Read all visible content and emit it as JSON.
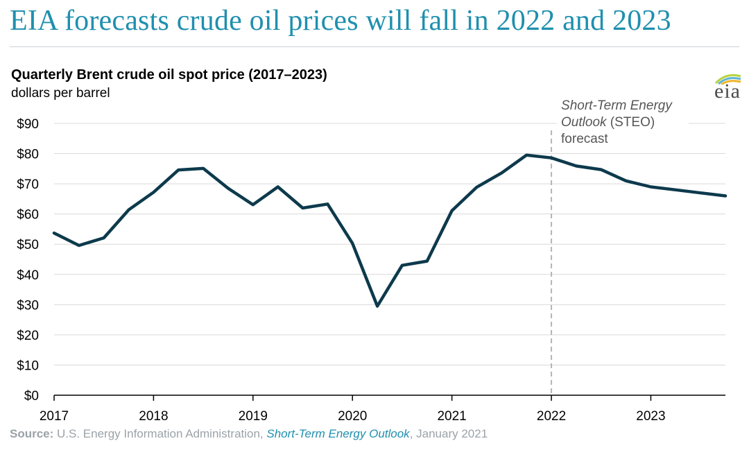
{
  "headline": "EIA forecasts crude oil prices will fall in 2022 and 2023",
  "logo": {
    "text": "eia"
  },
  "source": {
    "label": "Source:",
    "agency": " U.S. Energy Information Administration, ",
    "publication": "Short-Term Energy Outlook",
    "date": ", January 2021"
  },
  "chart_data": {
    "type": "line",
    "title": "Quarterly Brent crude oil spot price (2017–2023)",
    "subtitle": "dollars per barrel",
    "xlabel": "",
    "ylabel": "",
    "xlim": [
      2017.0,
      2023.75
    ],
    "ylim": [
      0,
      90
    ],
    "yticks": [
      0,
      10,
      20,
      30,
      40,
      50,
      60,
      70,
      80,
      90
    ],
    "ytick_labels": [
      "$0",
      "$10",
      "$20",
      "$30",
      "$40",
      "$50",
      "$60",
      "$70",
      "$80",
      "$90"
    ],
    "xticks": [
      2017,
      2018,
      2019,
      2020,
      2021,
      2022,
      2023
    ],
    "xtick_labels": [
      "2017",
      "2018",
      "2019",
      "2020",
      "2021",
      "2022",
      "2023"
    ],
    "grid": true,
    "line_color": "#0d3a4c",
    "forecast_start": 2022,
    "annotation": {
      "italic_lines": [
        "Short-Term Energy",
        "Outlook"
      ],
      "suffix": " (STEO)",
      "last_line": "forecast"
    },
    "series": [
      {
        "x": [
          2017.0,
          2017.25,
          2017.5,
          2017.75,
          2018.0,
          2018.25,
          2018.5,
          2018.75,
          2019.0,
          2019.25,
          2019.5,
          2019.75,
          2020.0,
          2020.25,
          2020.5,
          2020.75,
          2021.0,
          2021.25,
          2021.5,
          2021.75,
          2022.0,
          2022.25,
          2022.5,
          2022.75,
          2023.0,
          2023.25,
          2023.5,
          2023.75
        ],
        "values": [
          53.7,
          49.6,
          52.1,
          61.4,
          67.2,
          74.6,
          75.1,
          68.5,
          63.1,
          69.0,
          62.0,
          63.3,
          50.3,
          29.5,
          43.0,
          44.4,
          61.1,
          68.9,
          73.6,
          79.5,
          78.6,
          75.9,
          74.7,
          71.0,
          69.0,
          68.0,
          67.0,
          66.0
        ]
      }
    ]
  }
}
